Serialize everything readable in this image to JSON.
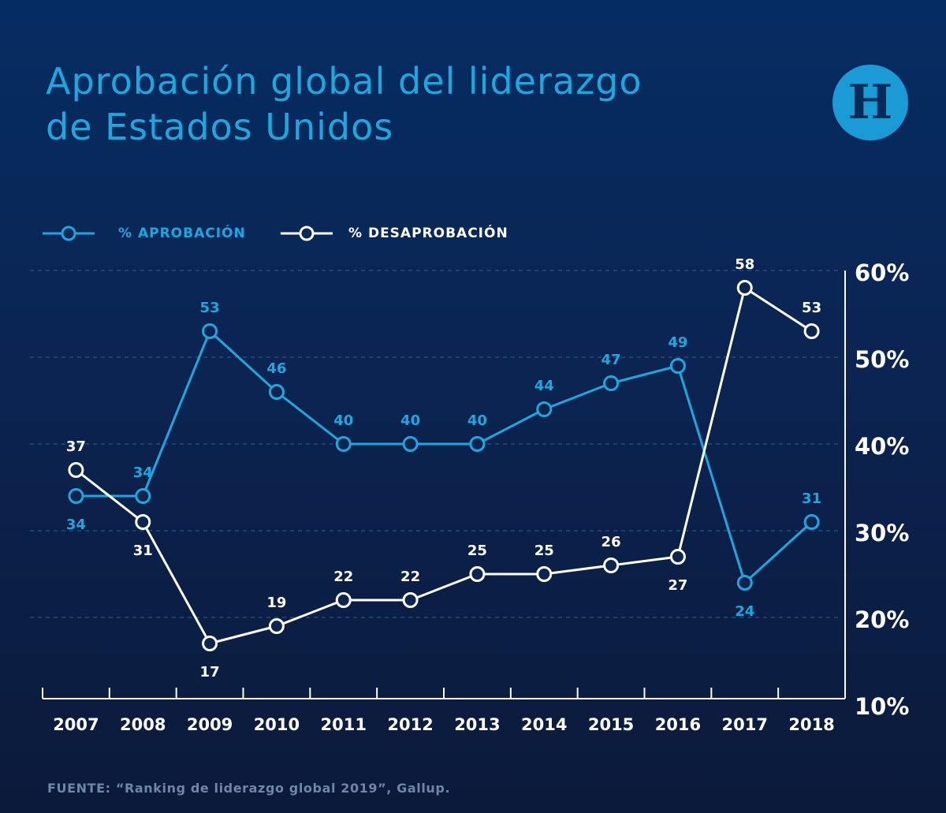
{
  "title": {
    "line1": "Aprobación global del liderazgo",
    "line2": "de Estados Unidos"
  },
  "logo": {
    "letter": "H",
    "color": "#1a9bd6"
  },
  "legend": [
    {
      "label": "% APROBACIÓN",
      "color": "#1fa6df",
      "icon": "line-circle-marker"
    },
    {
      "label": "% DESAPROBACIÓN",
      "color": "#ffffff",
      "icon": "line-circle-marker"
    }
  ],
  "source": "FUENTE: “Ranking de liderazgo global 2019”, Gallup.",
  "colors": {
    "approval": "#1fa6df",
    "disapproval": "#ffffff",
    "grid": "#2f5f8e",
    "axis": "#ffffff"
  },
  "chart_data": {
    "type": "line",
    "categories": [
      "2007",
      "2008",
      "2009",
      "2010",
      "2011",
      "2012",
      "2013",
      "2014",
      "2015",
      "2016",
      "2017",
      "2018"
    ],
    "series": [
      {
        "name": "% APROBACIÓN",
        "color": "#1fa6df",
        "values": [
          34,
          34,
          53,
          46,
          40,
          40,
          40,
          44,
          47,
          49,
          24,
          31
        ],
        "label_positions": [
          "below",
          "above",
          "above",
          "above",
          "above",
          "above",
          "above",
          "above",
          "above",
          "above",
          "below",
          "above"
        ]
      },
      {
        "name": "% DESAPROBACIÓN",
        "color": "#ffffff",
        "values": [
          37,
          31,
          17,
          19,
          22,
          22,
          25,
          25,
          26,
          27,
          58,
          53
        ],
        "label_positions": [
          "above",
          "below",
          "below",
          "above",
          "above",
          "above",
          "above",
          "above",
          "above",
          "below",
          "above",
          "above"
        ]
      }
    ],
    "yaxis": {
      "position": "right",
      "ticks": [
        10,
        20,
        30,
        40,
        50,
        60
      ],
      "tick_labels": [
        "10%",
        "20%",
        "30%",
        "40%",
        "50%",
        "60%"
      ],
      "ylim": [
        10,
        60
      ]
    },
    "xlabel": "",
    "ylabel": "",
    "grid": "horizontal-dashed",
    "legend": "top-left"
  }
}
